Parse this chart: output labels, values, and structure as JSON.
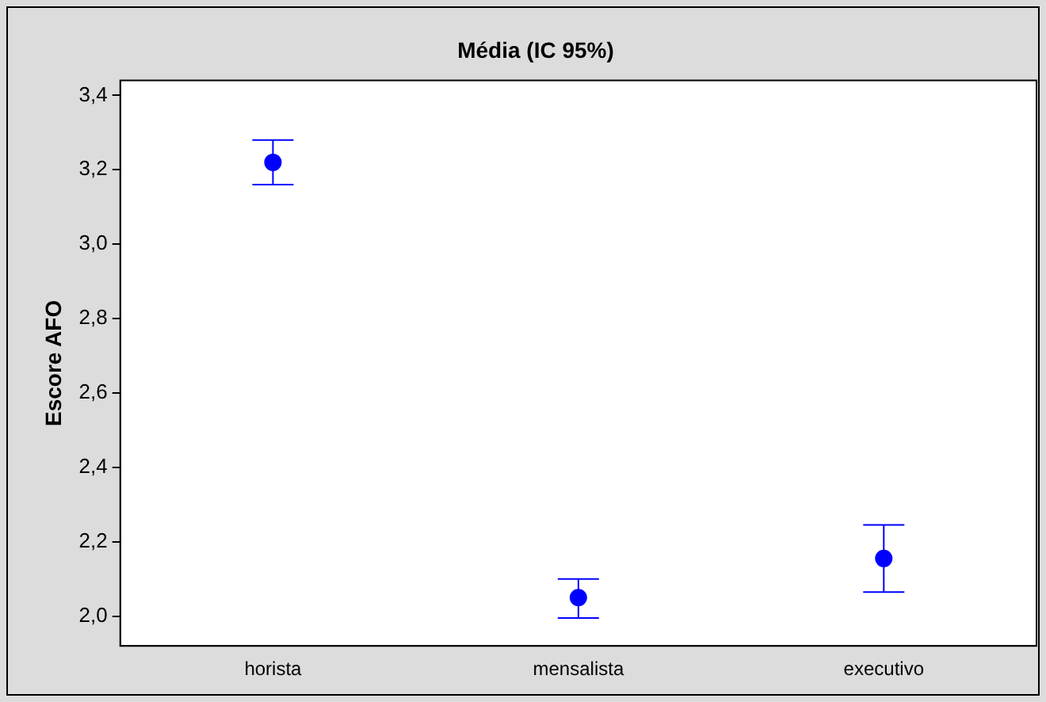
{
  "chart_data": {
    "type": "scatter",
    "title": "Média (IC 95%)",
    "ylabel": "Escore AFO",
    "categories": [
      "horista",
      "mensalista",
      "executivo"
    ],
    "series": [
      {
        "color": "#0000ff",
        "values": [
          3.22,
          2.05,
          2.155
        ],
        "errors": [
          [
            3.16,
            3.28
          ],
          [
            1.995,
            2.1
          ],
          [
            2.065,
            2.245
          ]
        ]
      }
    ],
    "ylim": [
      1.92,
      3.44
    ],
    "yticks": [
      {
        "value": 2,
        "label": "2,0"
      },
      {
        "value": 2.2,
        "label": "2,2"
      },
      {
        "value": 2.4,
        "label": "2,4"
      },
      {
        "value": 2.6,
        "label": "2,6"
      },
      {
        "value": 2.8,
        "label": "2,8"
      },
      {
        "value": 3,
        "label": "3,0"
      },
      {
        "value": 3.2,
        "label": "3,2"
      },
      {
        "value": 3.4,
        "label": "3,4"
      }
    ],
    "grid": false,
    "legend": false,
    "marker": "circle"
  }
}
